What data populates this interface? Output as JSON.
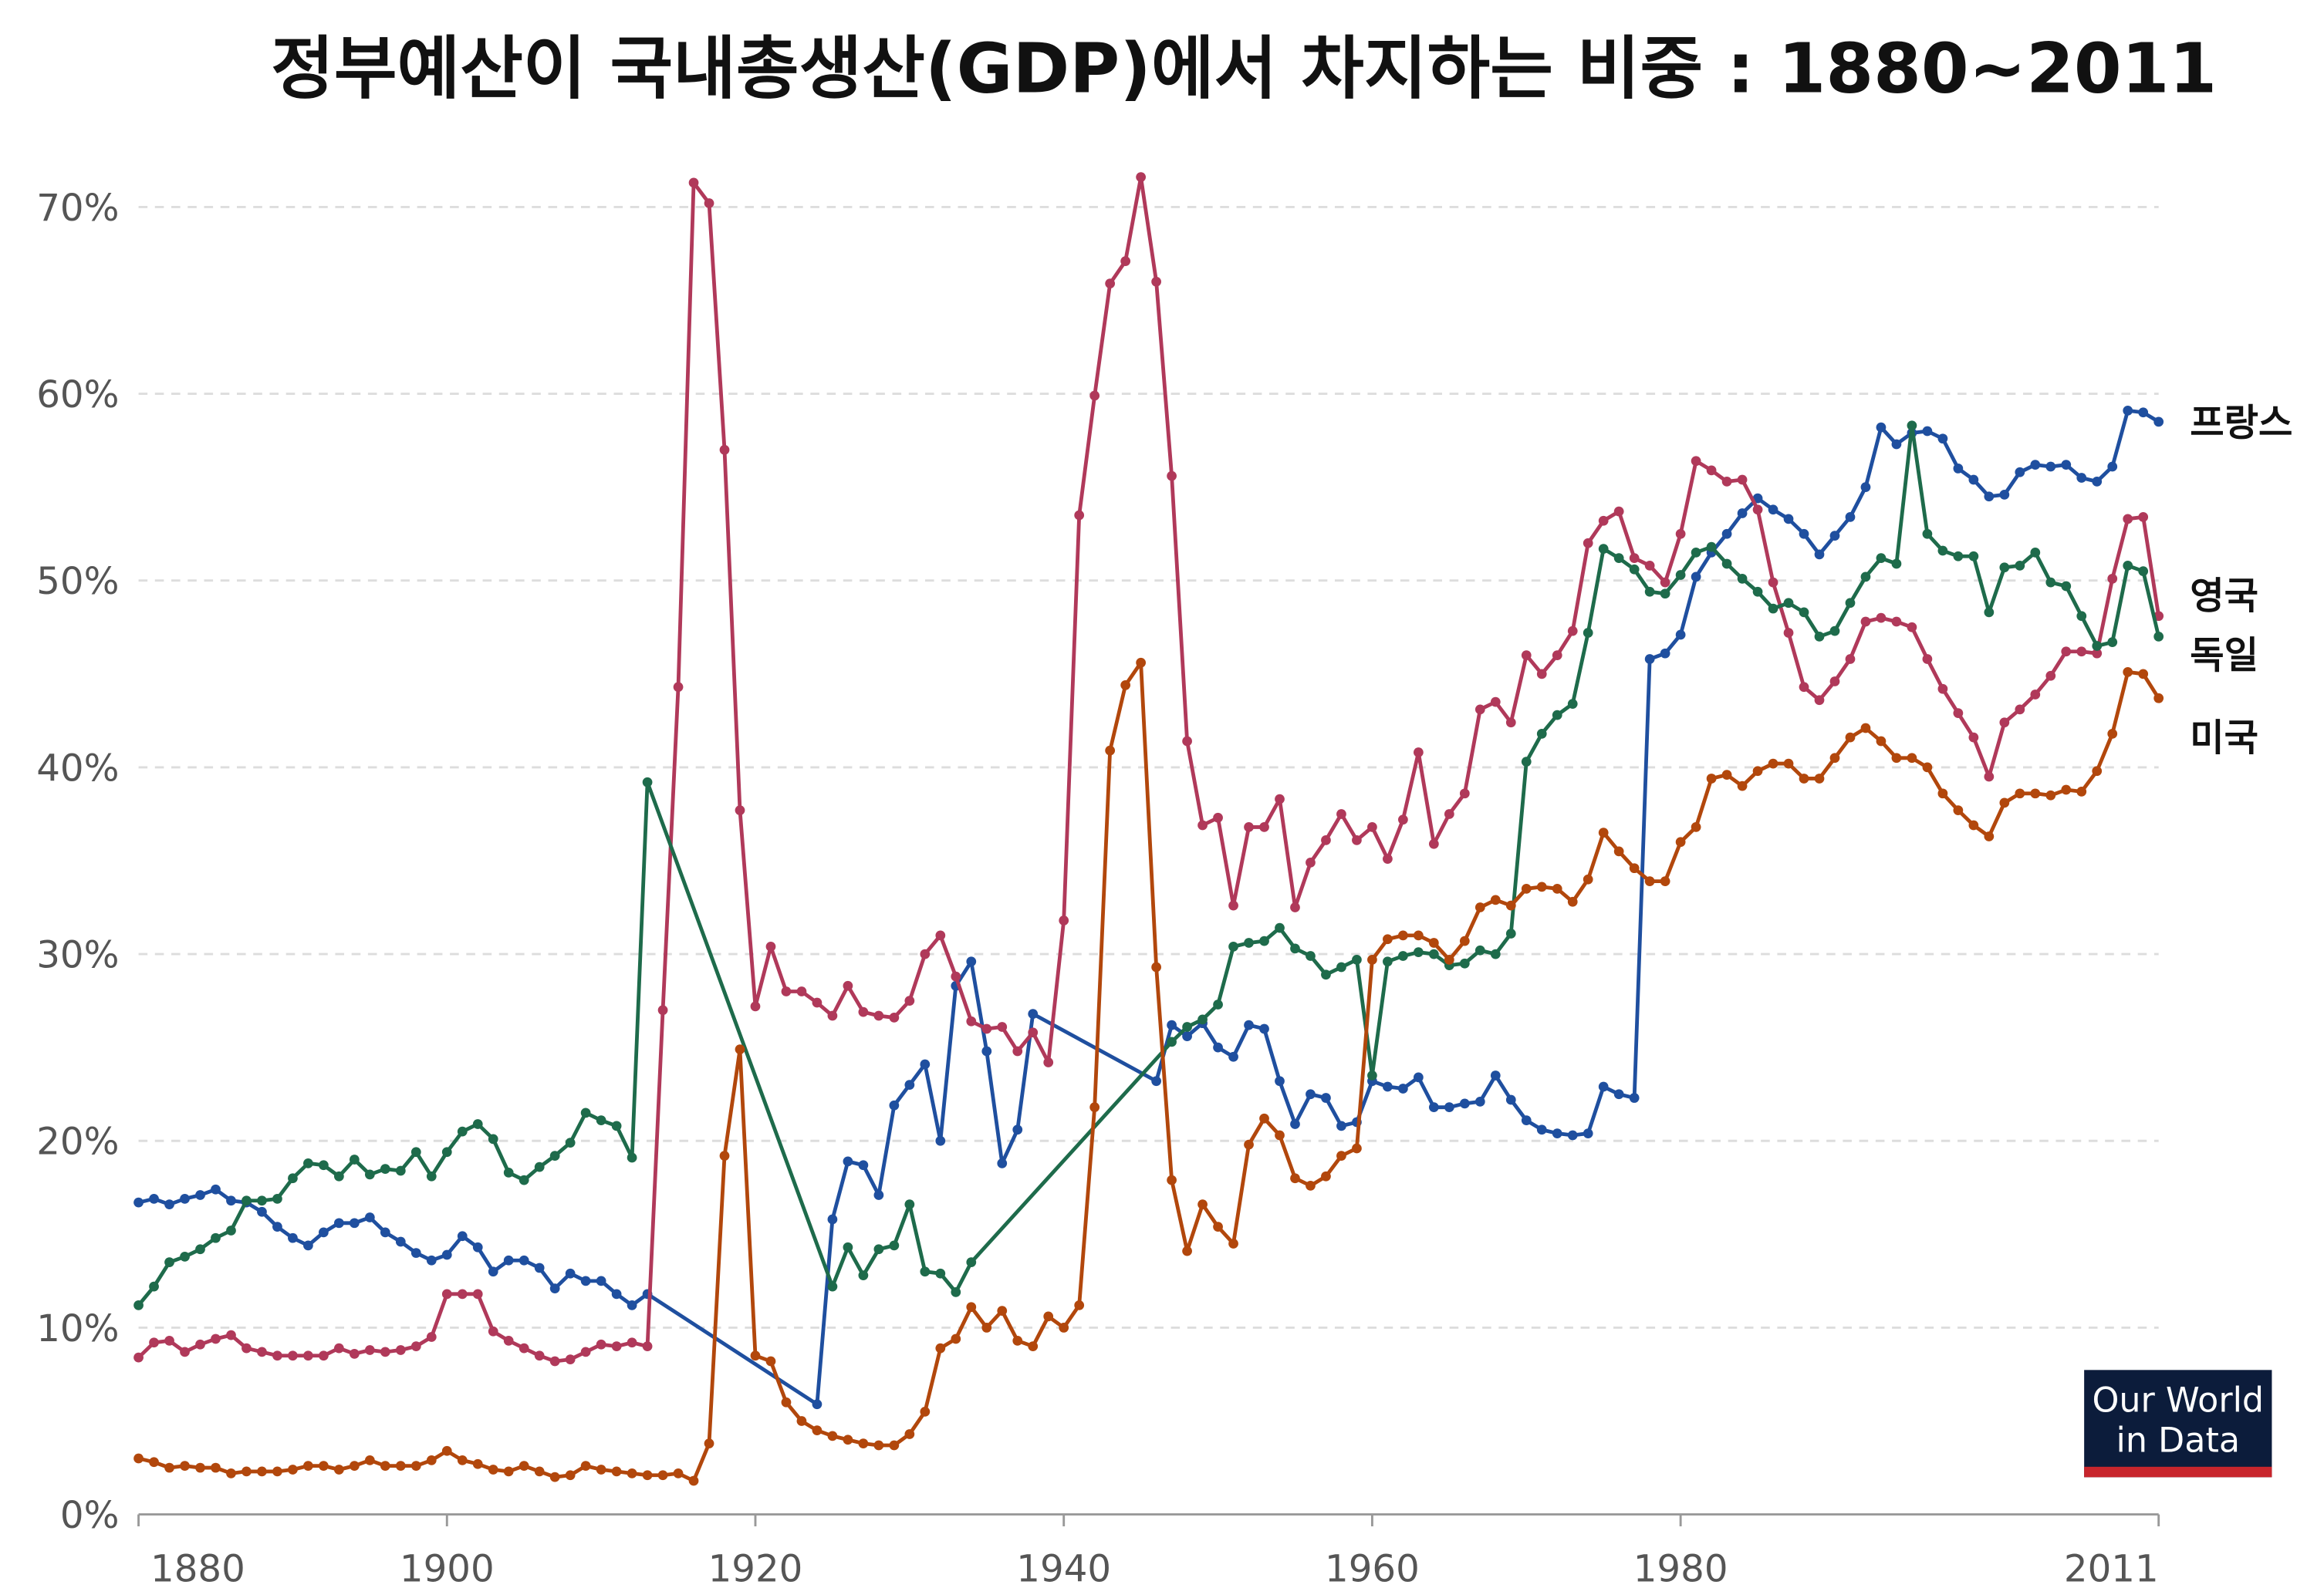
{
  "chart_data": {
    "type": "line",
    "title": "정부예산이 국내총생산(GDP)에서 차지하는 비중 : 1880~2011",
    "logo_lines": [
      "Our World",
      "in Data"
    ],
    "xlim": [
      1880,
      2011
    ],
    "xticks": [
      1880,
      1900,
      1920,
      1940,
      1960,
      1980,
      2011
    ],
    "ylim": [
      0,
      70
    ],
    "yticks": [
      {
        "value": 0,
        "label": "0%"
      },
      {
        "value": 10,
        "label": "10%"
      },
      {
        "value": 20,
        "label": "20%"
      },
      {
        "value": 30,
        "label": "30%"
      },
      {
        "value": 40,
        "label": "40%"
      },
      {
        "value": 50,
        "label": "50%"
      },
      {
        "value": 60,
        "label": "60%"
      },
      {
        "value": 70,
        "label": "70%"
      }
    ],
    "grid": true,
    "series": [
      {
        "name": "프랑스",
        "color": "#1f4f9f",
        "x": [
          1880,
          1881,
          1882,
          1883,
          1884,
          1885,
          1886,
          1887,
          1888,
          1889,
          1890,
          1891,
          1892,
          1893,
          1894,
          1895,
          1896,
          1897,
          1898,
          1899,
          1900,
          1901,
          1902,
          1903,
          1904,
          1905,
          1906,
          1907,
          1908,
          1909,
          1910,
          1911,
          1912,
          1913,
          1924,
          1925,
          1926,
          1927,
          1928,
          1929,
          1930,
          1931,
          1932,
          1933,
          1934,
          1935,
          1936,
          1937,
          1938,
          1946,
          1947,
          1948,
          1949,
          1950,
          1951,
          1952,
          1953,
          1954,
          1955,
          1956,
          1957,
          1958,
          1959,
          1960,
          1961,
          1962,
          1963,
          1964,
          1965,
          1966,
          1967,
          1968,
          1969,
          1970,
          1971,
          1972,
          1973,
          1974,
          1975,
          1976,
          1977,
          1978,
          1979,
          1980,
          1981,
          1982,
          1983,
          1984,
          1985,
          1986,
          1987,
          1988,
          1989,
          1990,
          1991,
          1992,
          1993,
          1994,
          1995,
          1996,
          1997,
          1998,
          1999,
          2000,
          2001,
          2002,
          2003,
          2004,
          2005,
          2006,
          2007,
          2008,
          2009,
          2010,
          2011
        ],
        "values": [
          16.7,
          16.9,
          16.6,
          16.9,
          17.1,
          17.4,
          16.8,
          16.7,
          16.2,
          15.4,
          14.8,
          14.4,
          15.1,
          15.6,
          15.6,
          15.9,
          15.1,
          14.6,
          14.0,
          13.6,
          13.9,
          14.9,
          14.3,
          13.0,
          13.6,
          13.6,
          13.2,
          12.1,
          12.9,
          12.5,
          12.5,
          11.8,
          11.2,
          11.8,
          5.9,
          15.8,
          18.9,
          18.7,
          17.1,
          21.9,
          23.0,
          24.1,
          20.0,
          28.3,
          29.6,
          24.8,
          18.8,
          20.6,
          26.8,
          23.2,
          26.2,
          25.6,
          26.3,
          25.0,
          24.5,
          26.2,
          26.0,
          23.2,
          20.9,
          22.5,
          22.3,
          20.8,
          21.0,
          23.2,
          22.9,
          22.8,
          23.4,
          21.8,
          21.8,
          22.0,
          22.1,
          23.5,
          22.2,
          21.1,
          20.6,
          20.4,
          20.3,
          20.4,
          22.9,
          22.5,
          22.3,
          45.8,
          46.1,
          47.1,
          50.2,
          51.5,
          52.5,
          53.6,
          54.4,
          53.8,
          53.3,
          52.5,
          51.4,
          52.4,
          53.4,
          55.0,
          58.2,
          57.3,
          57.9,
          58.0,
          57.6,
          56.0,
          55.4,
          54.5,
          54.6,
          55.8,
          56.2,
          56.1,
          56.2,
          55.5,
          55.3,
          56.1,
          59.1,
          59.0,
          58.5
        ]
      },
      {
        "name": "영국",
        "color": "#b0395a",
        "x": [
          1880,
          1881,
          1882,
          1883,
          1884,
          1885,
          1886,
          1887,
          1888,
          1889,
          1890,
          1891,
          1892,
          1893,
          1894,
          1895,
          1896,
          1897,
          1898,
          1899,
          1900,
          1901,
          1902,
          1903,
          1904,
          1905,
          1906,
          1907,
          1908,
          1909,
          1910,
          1911,
          1912,
          1913,
          1914,
          1915,
          1916,
          1917,
          1918,
          1919,
          1920,
          1921,
          1922,
          1923,
          1924,
          1925,
          1926,
          1927,
          1928,
          1929,
          1930,
          1931,
          1932,
          1933,
          1934,
          1935,
          1936,
          1937,
          1938,
          1939,
          1940,
          1941,
          1942,
          1943,
          1944,
          1945,
          1946,
          1947,
          1948,
          1949,
          1950,
          1951,
          1952,
          1953,
          1954,
          1955,
          1956,
          1957,
          1958,
          1959,
          1960,
          1961,
          1962,
          1963,
          1964,
          1965,
          1966,
          1967,
          1968,
          1969,
          1970,
          1971,
          1972,
          1973,
          1974,
          1975,
          1976,
          1977,
          1978,
          1979,
          1980,
          1981,
          1982,
          1983,
          1984,
          1985,
          1986,
          1987,
          1988,
          1989,
          1990,
          1991,
          1992,
          1993,
          1994,
          1995,
          1996,
          1997,
          1998,
          1999,
          2000,
          2001,
          2002,
          2003,
          2004,
          2005,
          2006,
          2007,
          2008,
          2009,
          2010,
          2011
        ],
        "values": [
          8.4,
          9.2,
          9.3,
          8.7,
          9.1,
          9.4,
          9.6,
          8.9,
          8.7,
          8.5,
          8.5,
          8.5,
          8.5,
          8.9,
          8.6,
          8.8,
          8.7,
          8.8,
          9.0,
          9.5,
          11.8,
          11.8,
          11.8,
          9.8,
          9.3,
          8.9,
          8.5,
          8.2,
          8.3,
          8.7,
          9.1,
          9.0,
          9.2,
          9.0,
          27.0,
          44.3,
          71.3,
          70.2,
          57.0,
          37.7,
          27.2,
          30.4,
          28.0,
          28.0,
          27.4,
          26.7,
          28.3,
          26.9,
          26.7,
          26.6,
          27.5,
          30.0,
          31.0,
          28.8,
          26.4,
          26.0,
          26.1,
          24.8,
          25.8,
          24.2,
          31.8,
          53.5,
          59.9,
          65.9,
          67.1,
          71.6,
          66.0,
          55.6,
          41.4,
          36.9,
          37.3,
          32.6,
          36.8,
          36.8,
          38.3,
          32.5,
          34.9,
          36.1,
          37.5,
          36.1,
          36.8,
          35.1,
          37.2,
          40.8,
          35.9,
          37.5,
          38.6,
          43.1,
          43.5,
          42.4,
          46.0,
          45.0,
          46.0,
          47.3,
          52.0,
          53.2,
          53.7,
          51.2,
          50.8,
          49.9,
          52.5,
          56.4,
          55.9,
          55.3,
          55.4,
          53.8,
          49.9,
          47.2,
          44.3,
          43.6,
          44.6,
          45.8,
          47.8,
          48.0,
          47.8,
          47.5,
          45.8,
          44.2,
          42.9,
          41.6,
          39.5,
          42.4,
          43.1,
          43.9,
          44.9,
          46.2,
          46.2,
          46.1,
          50.1,
          53.3,
          53.4,
          48.1
        ]
      },
      {
        "name": "독일",
        "color": "#1e6b4b",
        "x": [
          1880,
          1881,
          1882,
          1883,
          1884,
          1885,
          1886,
          1887,
          1888,
          1889,
          1890,
          1891,
          1892,
          1893,
          1894,
          1895,
          1896,
          1897,
          1898,
          1899,
          1900,
          1901,
          1902,
          1903,
          1904,
          1905,
          1906,
          1907,
          1908,
          1909,
          1910,
          1911,
          1912,
          1913,
          1925,
          1926,
          1927,
          1928,
          1929,
          1930,
          1931,
          1932,
          1933,
          1934,
          1947,
          1948,
          1949,
          1950,
          1951,
          1952,
          1953,
          1954,
          1955,
          1956,
          1957,
          1958,
          1959,
          1960,
          1961,
          1962,
          1963,
          1964,
          1965,
          1966,
          1967,
          1968,
          1969,
          1970,
          1971,
          1972,
          1973,
          1974,
          1975,
          1976,
          1977,
          1978,
          1979,
          1980,
          1981,
          1982,
          1983,
          1984,
          1985,
          1986,
          1987,
          1988,
          1989,
          1990,
          1991,
          1992,
          1993,
          1994,
          1995,
          1996,
          1997,
          1998,
          1999,
          2000,
          2001,
          2002,
          2003,
          2004,
          2005,
          2006,
          2007,
          2008,
          2009,
          2010,
          2011
        ],
        "values": [
          11.2,
          12.2,
          13.5,
          13.8,
          14.2,
          14.8,
          15.2,
          16.8,
          16.8,
          16.9,
          18.0,
          18.8,
          18.7,
          18.1,
          19.0,
          18.2,
          18.5,
          18.4,
          19.4,
          18.1,
          19.4,
          20.5,
          20.9,
          20.1,
          18.3,
          17.9,
          18.6,
          19.2,
          19.9,
          21.5,
          21.1,
          20.8,
          19.1,
          39.2,
          12.2,
          14.3,
          12.8,
          14.2,
          14.4,
          16.6,
          13.0,
          12.9,
          11.9,
          13.5,
          25.3,
          26.1,
          26.5,
          27.3,
          30.4,
          30.6,
          30.7,
          31.4,
          30.3,
          29.9,
          28.9,
          29.3,
          29.7,
          23.5,
          29.6,
          29.9,
          30.1,
          30.0,
          29.4,
          29.5,
          30.2,
          30.0,
          31.1,
          40.3,
          41.8,
          42.8,
          43.4,
          47.2,
          51.7,
          51.2,
          50.6,
          49.4,
          49.3,
          50.3,
          51.5,
          51.8,
          50.9,
          50.1,
          49.4,
          48.5,
          48.8,
          48.3,
          47.0,
          47.3,
          48.8,
          50.2,
          51.2,
          50.9,
          58.3,
          52.5,
          51.6,
          51.3,
          51.3,
          48.3,
          50.7,
          50.8,
          51.5,
          49.9,
          49.7,
          48.1,
          46.5,
          46.7,
          50.8,
          50.5,
          47.0
        ]
      },
      {
        "name": "미국",
        "color": "#b2470c",
        "x": [
          1880,
          1881,
          1882,
          1883,
          1884,
          1885,
          1886,
          1887,
          1888,
          1889,
          1890,
          1891,
          1892,
          1893,
          1894,
          1895,
          1896,
          1897,
          1898,
          1899,
          1900,
          1901,
          1902,
          1903,
          1904,
          1905,
          1906,
          1907,
          1908,
          1909,
          1910,
          1911,
          1912,
          1913,
          1914,
          1915,
          1916,
          1917,
          1918,
          1919,
          1920,
          1921,
          1922,
          1923,
          1924,
          1925,
          1926,
          1927,
          1928,
          1929,
          1930,
          1931,
          1932,
          1933,
          1934,
          1935,
          1936,
          1937,
          1938,
          1939,
          1940,
          1941,
          1942,
          1943,
          1944,
          1945,
          1946,
          1947,
          1948,
          1949,
          1950,
          1951,
          1952,
          1953,
          1954,
          1955,
          1956,
          1957,
          1958,
          1959,
          1960,
          1961,
          1962,
          1963,
          1964,
          1965,
          1966,
          1967,
          1968,
          1969,
          1970,
          1971,
          1972,
          1973,
          1974,
          1975,
          1976,
          1977,
          1978,
          1979,
          1980,
          1981,
          1982,
          1983,
          1984,
          1985,
          1986,
          1987,
          1988,
          1989,
          1990,
          1991,
          1992,
          1993,
          1994,
          1995,
          1996,
          1997,
          1998,
          1999,
          2000,
          2001,
          2002,
          2003,
          2004,
          2005,
          2006,
          2007,
          2008,
          2009,
          2010,
          2011
        ],
        "values": [
          3.0,
          2.8,
          2.5,
          2.6,
          2.5,
          2.5,
          2.2,
          2.3,
          2.3,
          2.3,
          2.4,
          2.6,
          2.6,
          2.4,
          2.6,
          2.9,
          2.6,
          2.6,
          2.6,
          2.9,
          3.4,
          2.9,
          2.7,
          2.4,
          2.3,
          2.6,
          2.3,
          2.0,
          2.1,
          2.6,
          2.4,
          2.3,
          2.2,
          2.1,
          2.1,
          2.2,
          1.8,
          3.8,
          19.2,
          24.9,
          8.5,
          8.2,
          6.0,
          5.0,
          4.5,
          4.2,
          4.0,
          3.8,
          3.7,
          3.7,
          4.3,
          5.5,
          8.9,
          9.4,
          11.1,
          10.0,
          10.9,
          9.3,
          9.0,
          10.6,
          10.0,
          11.2,
          21.8,
          40.9,
          44.4,
          45.6,
          29.3,
          17.9,
          14.1,
          16.6,
          15.4,
          14.5,
          19.8,
          21.2,
          20.3,
          18.0,
          17.6,
          18.1,
          19.2,
          19.6,
          29.7,
          30.8,
          31.0,
          31.0,
          30.6,
          29.7,
          30.7,
          32.5,
          32.9,
          32.6,
          33.5,
          33.6,
          33.5,
          32.8,
          34.0,
          36.5,
          35.5,
          34.6,
          33.9,
          33.9,
          36.0,
          36.8,
          39.4,
          39.6,
          39.0,
          39.8,
          40.2,
          40.2,
          39.4,
          39.4,
          40.5,
          41.6,
          42.1,
          41.4,
          40.5,
          40.5,
          40.0,
          38.6,
          37.7,
          36.9,
          36.3,
          38.1,
          38.6,
          38.6,
          38.5,
          38.8,
          38.7,
          39.8,
          41.8,
          45.1,
          45.0,
          43.7
        ]
      }
    ]
  }
}
